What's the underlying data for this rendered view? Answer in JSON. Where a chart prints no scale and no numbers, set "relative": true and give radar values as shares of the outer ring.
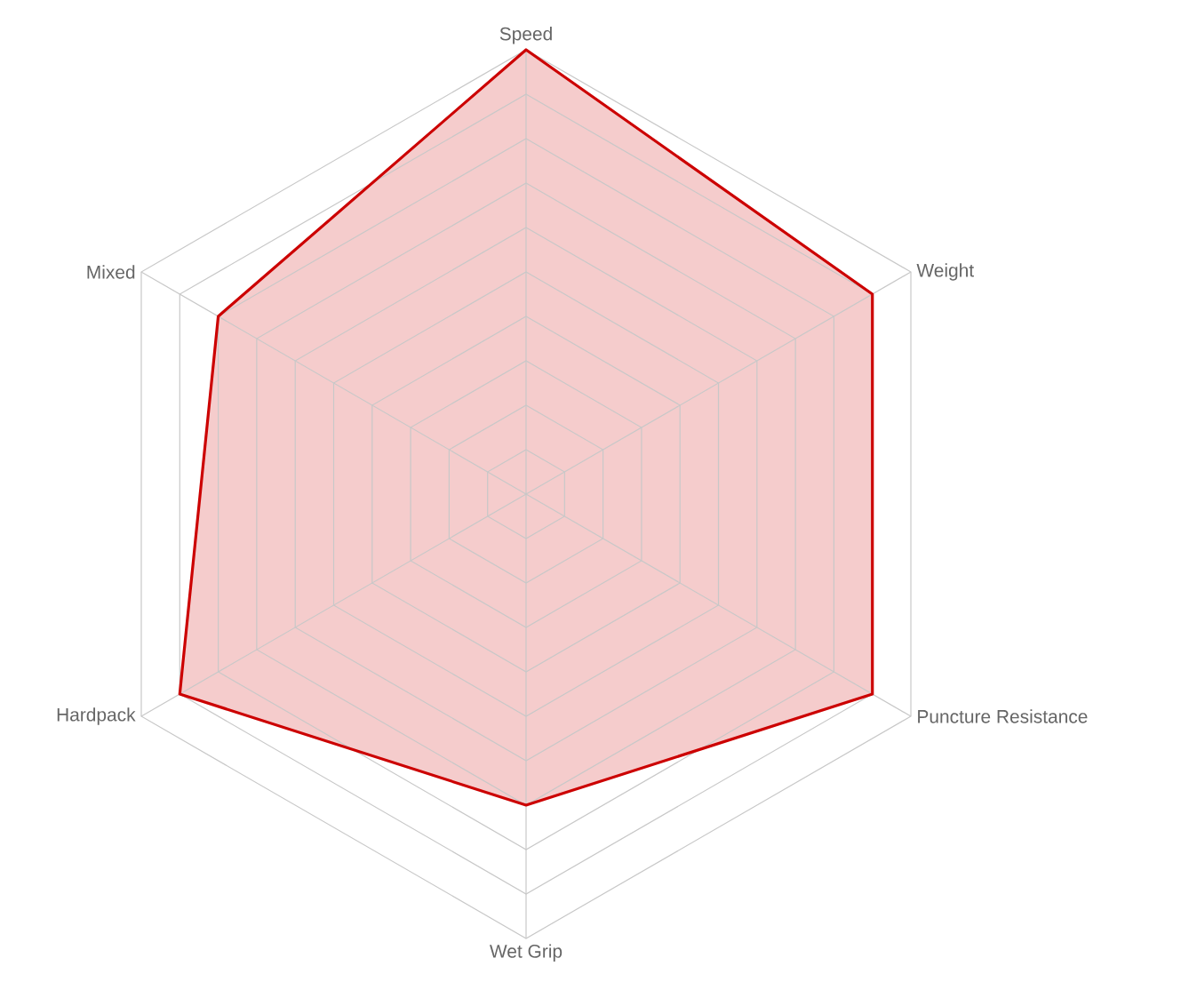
{
  "chart_data": {
    "type": "radar",
    "relative": true,
    "grid": true,
    "categories": [
      "Speed",
      "Weight",
      "Puncture Resistance",
      "Wet Grip",
      "Hardpack",
      "Mixed"
    ],
    "series": [
      {
        "color": "#cc0000",
        "values": [
          1.0,
          0.9,
          0.9,
          0.7,
          0.9,
          0.8
        ]
      }
    ]
  }
}
